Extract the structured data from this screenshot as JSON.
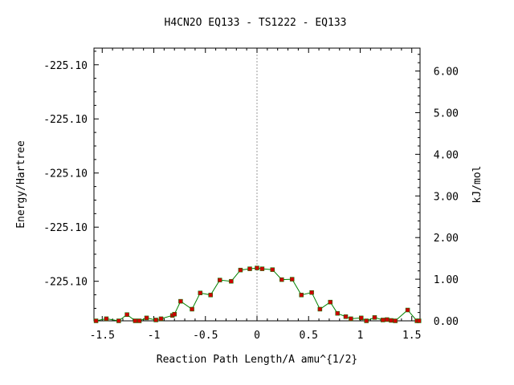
{
  "chart_data": {
    "type": "line",
    "title": "H4CN2O   EQ133 - TS1222 - EQ133",
    "xlabel": "Reaction Path Length/A amu^{1/2}",
    "ylabel_left": "Energy/Hartree",
    "ylabel_right": "kJ/mol",
    "xlim": [
      -1.58,
      1.58
    ],
    "ylim_right": [
      0.0,
      6.55
    ],
    "x_ticks": [
      -1.5,
      -1,
      -0.5,
      0,
      0.5,
      1,
      1.5
    ],
    "x_tick_labels": [
      "-1.5",
      "-1",
      "-0.5",
      "0",
      "0.5",
      "1",
      "1.5"
    ],
    "left_ticks_kjmol": [
      0.95,
      2.25,
      3.55,
      4.85,
      6.15
    ],
    "left_tick_labels": [
      "-225.10",
      "-225.10",
      "-225.10",
      "-225.10",
      "-225.10"
    ],
    "right_ticks": [
      0,
      1,
      2,
      3,
      4,
      5,
      6
    ],
    "right_tick_labels": [
      "0.00",
      "1.00",
      "2.00",
      "3.00",
      "4.00",
      "5.00",
      "6.00"
    ],
    "line_color": "#008000",
    "marker_color": "#cc0000",
    "reference_line_x": 0,
    "points": [
      [
        -1.56,
        0.0
      ],
      [
        -1.46,
        0.05
      ],
      [
        -1.34,
        0.0
      ],
      [
        -1.26,
        0.15
      ],
      [
        -1.18,
        0.0
      ],
      [
        -1.14,
        0.0
      ],
      [
        -1.07,
        0.07
      ],
      [
        -0.98,
        0.02
      ],
      [
        -0.93,
        0.05
      ],
      [
        -0.82,
        0.13
      ],
      [
        -0.8,
        0.16
      ],
      [
        -0.74,
        0.47
      ],
      [
        -0.63,
        0.28
      ],
      [
        -0.55,
        0.67
      ],
      [
        -0.45,
        0.62
      ],
      [
        -0.36,
        0.98
      ],
      [
        -0.25,
        0.95
      ],
      [
        -0.16,
        1.22
      ],
      [
        -0.07,
        1.25
      ],
      [
        0.0,
        1.27
      ],
      [
        0.05,
        1.25
      ],
      [
        0.15,
        1.23
      ],
      [
        0.24,
        0.99
      ],
      [
        0.34,
        1.0
      ],
      [
        0.43,
        0.62
      ],
      [
        0.53,
        0.68
      ],
      [
        0.61,
        0.28
      ],
      [
        0.71,
        0.45
      ],
      [
        0.78,
        0.18
      ],
      [
        0.86,
        0.1
      ],
      [
        0.91,
        0.05
      ],
      [
        1.01,
        0.07
      ],
      [
        1.06,
        0.0
      ],
      [
        1.14,
        0.08
      ],
      [
        1.22,
        0.02
      ],
      [
        1.26,
        0.03
      ],
      [
        1.3,
        0.01
      ],
      [
        1.34,
        0.0
      ],
      [
        1.46,
        0.26
      ],
      [
        1.55,
        0.0
      ],
      [
        1.57,
        0.0
      ]
    ]
  }
}
